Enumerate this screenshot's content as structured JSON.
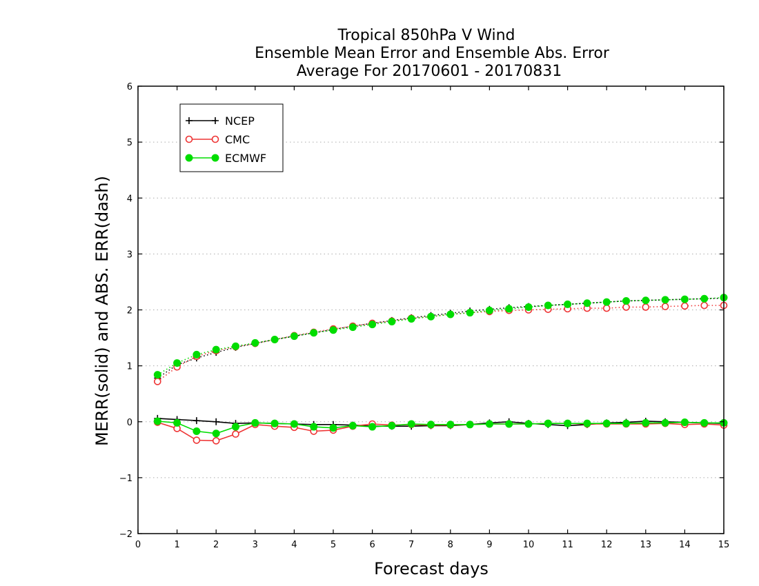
{
  "chart_data": {
    "type": "line",
    "title_lines": [
      "Tropical 850hPa V Wind",
      "Ensemble Mean Error and Ensemble Abs. Error",
      "Average For 20170601 - 20170831"
    ],
    "xlabel": "Forecast days",
    "ylabel": "MERR(solid) and ABS. ERR(dash)",
    "xlim": [
      0,
      15
    ],
    "ylim": [
      -2,
      6
    ],
    "x_ticks": [
      "0",
      "1",
      "2",
      "3",
      "4",
      "5",
      "6",
      "7",
      "8",
      "9",
      "10",
      "11",
      "12",
      "13",
      "14",
      "15"
    ],
    "y_ticks": [
      "−2",
      "−1",
      "0",
      "1",
      "2",
      "3",
      "4",
      "5",
      "6"
    ],
    "grid": "horizontal dotted",
    "legend_position": "top-left",
    "x": [
      0.5,
      1,
      1.5,
      2,
      2.5,
      3,
      3.5,
      4,
      4.5,
      5,
      5.5,
      6,
      6.5,
      7,
      7.5,
      8,
      8.5,
      9,
      9.5,
      10,
      10.5,
      11,
      11.5,
      12,
      12.5,
      13,
      13.5,
      14,
      14.5,
      15
    ],
    "series": [
      {
        "name": "NCEP",
        "color": "#000000",
        "marker": "plus",
        "mean_error": [
          0.06,
          0.04,
          0.02,
          0.0,
          -0.03,
          -0.02,
          -0.03,
          -0.04,
          -0.05,
          -0.05,
          -0.06,
          -0.08,
          -0.08,
          -0.08,
          -0.07,
          -0.07,
          -0.05,
          -0.02,
          0.0,
          -0.03,
          -0.05,
          -0.07,
          -0.05,
          -0.02,
          -0.01,
          0.01,
          0.0,
          -0.01,
          -0.02,
          -0.03
        ],
        "abs_error": [
          0.78,
          1.02,
          1.14,
          1.24,
          1.33,
          1.4,
          1.47,
          1.53,
          1.59,
          1.65,
          1.71,
          1.76,
          1.81,
          1.86,
          1.9,
          1.94,
          1.98,
          2.01,
          2.04,
          2.06,
          2.08,
          2.1,
          2.12,
          2.14,
          2.16,
          2.17,
          2.18,
          2.19,
          2.2,
          2.21
        ]
      },
      {
        "name": "CMC",
        "color": "#ee3333",
        "marker": "open-circle",
        "mean_error": [
          -0.01,
          -0.12,
          -0.33,
          -0.34,
          -0.22,
          -0.05,
          -0.08,
          -0.1,
          -0.17,
          -0.15,
          -0.08,
          -0.04,
          -0.06,
          -0.05,
          -0.06,
          -0.06,
          -0.05,
          -0.04,
          -0.04,
          -0.04,
          -0.03,
          -0.03,
          -0.04,
          -0.04,
          -0.04,
          -0.04,
          -0.03,
          -0.05,
          -0.04,
          -0.06
        ],
        "abs_error": [
          0.72,
          0.98,
          1.17,
          1.27,
          1.34,
          1.4,
          1.47,
          1.54,
          1.6,
          1.66,
          1.71,
          1.76,
          1.8,
          1.85,
          1.88,
          1.92,
          1.95,
          1.97,
          1.99,
          2.0,
          2.01,
          2.02,
          2.03,
          2.03,
          2.05,
          2.05,
          2.06,
          2.07,
          2.08,
          2.08
        ]
      },
      {
        "name": "ECMWF",
        "color": "#00dd00",
        "marker": "filled-circle",
        "mean_error": [
          0.01,
          -0.02,
          -0.17,
          -0.21,
          -0.09,
          -0.02,
          -0.03,
          -0.04,
          -0.09,
          -0.11,
          -0.07,
          -0.09,
          -0.07,
          -0.04,
          -0.05,
          -0.05,
          -0.05,
          -0.04,
          -0.04,
          -0.04,
          -0.03,
          -0.03,
          -0.03,
          -0.03,
          -0.03,
          -0.02,
          -0.02,
          -0.01,
          -0.02,
          -0.02
        ],
        "abs_error": [
          0.84,
          1.05,
          1.2,
          1.29,
          1.35,
          1.41,
          1.47,
          1.53,
          1.59,
          1.64,
          1.69,
          1.74,
          1.79,
          1.84,
          1.88,
          1.92,
          1.95,
          1.99,
          2.02,
          2.05,
          2.08,
          2.1,
          2.12,
          2.14,
          2.16,
          2.17,
          2.18,
          2.19,
          2.2,
          2.22
        ]
      }
    ]
  }
}
